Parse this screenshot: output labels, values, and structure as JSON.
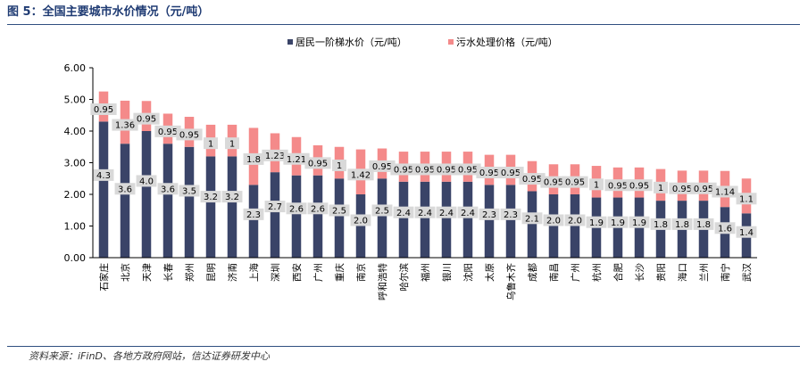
{
  "figure_title": "图 5：全国主要城市水价情况（元/吨）",
  "source_note": "资料来源：iFinD、各地方政府网站，信达证券研发中心",
  "colors": {
    "resident": "#3a4468",
    "sewage": "#f48a8a",
    "label_box": "#d9d9d9",
    "axis": "#000000"
  },
  "chart_data": {
    "type": "bar",
    "stacked": true,
    "title": "",
    "xlabel": "",
    "ylabel": "",
    "ylim": [
      0,
      6
    ],
    "yticks": [
      "0.00",
      "1.00",
      "2.00",
      "3.00",
      "4.00",
      "5.00",
      "6.00"
    ],
    "grid": false,
    "legend_position": "top-center",
    "categories": [
      "石家庄",
      "北京",
      "天津",
      "长春",
      "郑州",
      "昆明",
      "济南",
      "上海",
      "深圳",
      "西安",
      "广州",
      "重庆",
      "南京",
      "呼和浩特",
      "哈尔滨",
      "福州",
      "银川",
      "沈阳",
      "太原",
      "乌鲁木齐",
      "成都",
      "南昌",
      "广州",
      "杭州",
      "合肥",
      "长沙",
      "贵阳",
      "海口",
      "兰州",
      "南宁",
      "武汉"
    ],
    "series": [
      {
        "name": "居民一阶梯水价（元/吨）",
        "values": [
          4.3,
          3.6,
          4.0,
          3.6,
          3.5,
          3.2,
          3.2,
          2.3,
          2.7,
          2.6,
          2.6,
          2.5,
          2.0,
          2.5,
          2.4,
          2.4,
          2.4,
          2.4,
          2.3,
          2.3,
          2.1,
          2.0,
          2.0,
          1.9,
          1.9,
          1.9,
          1.8,
          1.8,
          1.8,
          1.6,
          1.4
        ],
        "labels": [
          "4.3",
          "3.6",
          "4.0",
          "3.6",
          "3.5",
          "3.2",
          "3.2",
          "2.3",
          "2.7",
          "2.6",
          "2.6",
          "2.5",
          "2.0",
          "2.5",
          "2.4",
          "2.4",
          "2.4",
          "2.4",
          "2.3",
          "2.3",
          "2.1",
          "2.0",
          "2.0",
          "1.9",
          "1.9",
          "1.9",
          "1.8",
          "1.8",
          "1.8",
          "1.6",
          "1.4"
        ]
      },
      {
        "name": "污水处理价格（元/吨）",
        "values": [
          0.95,
          1.36,
          0.95,
          0.95,
          0.95,
          1,
          1,
          1.8,
          1.23,
          1.21,
          0.95,
          1,
          1.42,
          0.95,
          0.95,
          0.95,
          0.95,
          0.95,
          0.95,
          0.95,
          0.95,
          0.95,
          0.95,
          1,
          0.95,
          0.95,
          1,
          0.95,
          0.95,
          1.14,
          1.1
        ],
        "labels": [
          "0.95",
          "1.36",
          "0.95",
          "0.95",
          "0.95",
          "1",
          "1",
          "1.8",
          "1.23",
          "1.21",
          "0.95",
          "1",
          "1.42",
          "0.95",
          "0.95",
          "0.95",
          "0.95",
          "0.95",
          "0.95",
          "0.95",
          "0.95",
          "0.95",
          "0.95",
          "1",
          "0.95",
          "0.95",
          "1",
          "0.95",
          "0.95",
          "1.14",
          "1.1"
        ]
      }
    ]
  }
}
